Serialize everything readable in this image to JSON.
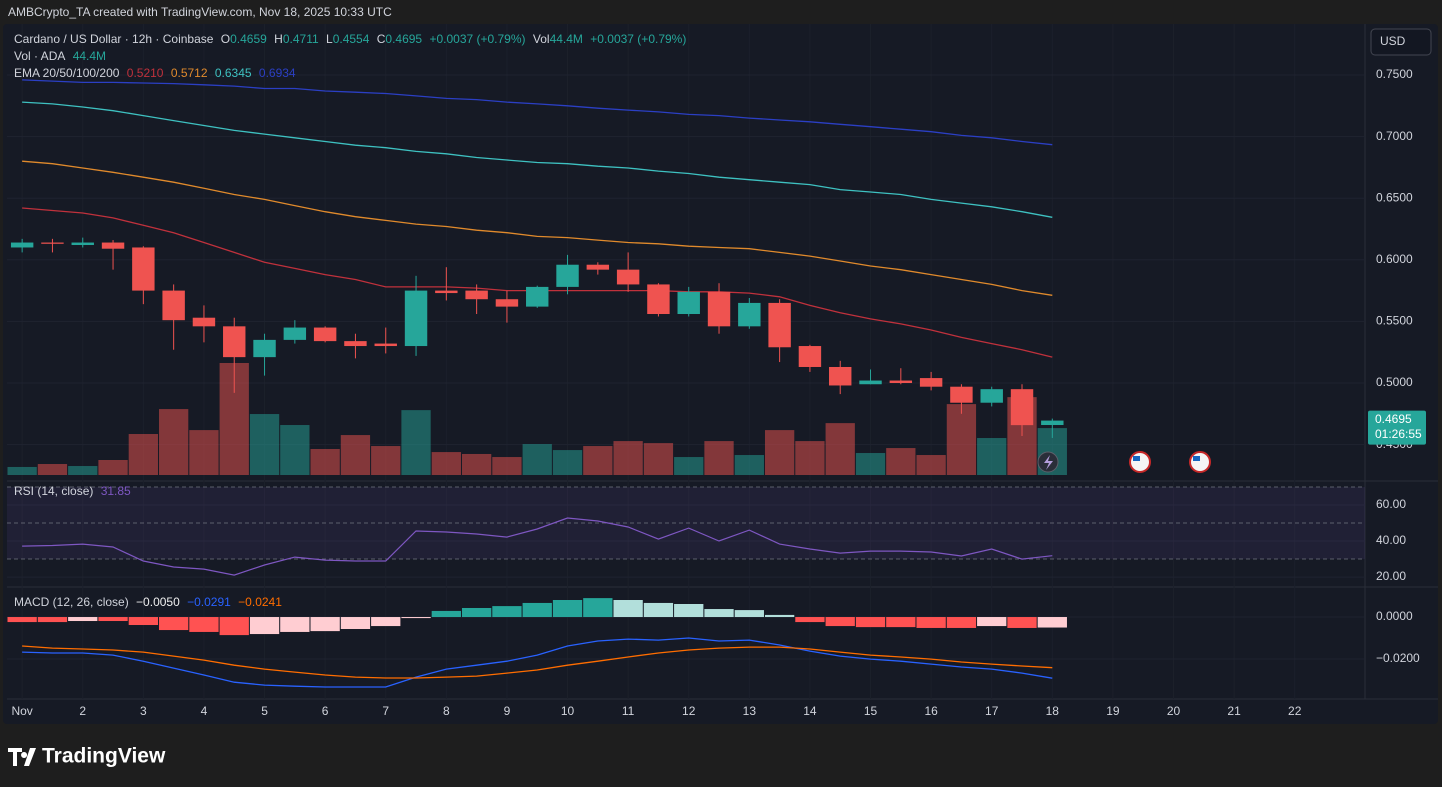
{
  "header": {
    "attribution": "AMBCrypto_TA created with TradingView.com, Nov 18, 2025 10:33 UTC"
  },
  "currency": "USD",
  "countdown": "01:26:55",
  "brand": "TradingView",
  "chart_data": [
    {
      "type": "candlestick",
      "title": "Cardano / US Dollar · 12h · Coinbase",
      "ohlc_labels": [
        "O",
        "H",
        "L",
        "C"
      ],
      "change": "+0.0037 (+0.79%)",
      "vol_short": "Vol",
      "up_color": "#26a69a",
      "down_color": "#ef5350",
      "x": [
        1,
        1.5,
        2,
        2.5,
        3,
        3.5,
        4,
        4.5,
        5,
        5.5,
        6,
        6.5,
        7,
        7.5,
        8,
        8.5,
        9,
        9.5,
        10,
        10.5,
        11,
        11.5,
        12,
        12.5,
        13,
        13.5,
        14,
        14.5,
        15,
        15.5,
        16,
        16.5,
        17,
        17.5,
        18
      ],
      "open": [
        0.61,
        0.614,
        0.612,
        0.614,
        0.61,
        0.575,
        0.553,
        0.546,
        0.521,
        0.535,
        0.545,
        0.534,
        0.532,
        0.53,
        0.575,
        0.575,
        0.568,
        0.562,
        0.578,
        0.596,
        0.592,
        0.58,
        0.556,
        0.574,
        0.546,
        0.565,
        0.53,
        0.513,
        0.499,
        0.502,
        0.504,
        0.497,
        0.484,
        0.495,
        0.4659
      ],
      "high": [
        0.617,
        0.617,
        0.618,
        0.616,
        0.611,
        0.58,
        0.563,
        0.553,
        0.54,
        0.551,
        0.546,
        0.54,
        0.545,
        0.587,
        0.594,
        0.58,
        0.575,
        0.579,
        0.604,
        0.598,
        0.606,
        0.581,
        0.578,
        0.581,
        0.569,
        0.568,
        0.531,
        0.518,
        0.511,
        0.512,
        0.509,
        0.499,
        0.497,
        0.499,
        0.4711
      ],
      "low": [
        0.606,
        0.606,
        0.61,
        0.592,
        0.564,
        0.527,
        0.533,
        0.492,
        0.506,
        0.532,
        0.533,
        0.52,
        0.524,
        0.522,
        0.567,
        0.556,
        0.549,
        0.561,
        0.572,
        0.588,
        0.574,
        0.554,
        0.554,
        0.54,
        0.544,
        0.517,
        0.509,
        0.491,
        0.499,
        0.499,
        0.494,
        0.475,
        0.481,
        0.457,
        0.4554
      ],
      "close": [
        0.614,
        0.613,
        0.614,
        0.609,
        0.575,
        0.551,
        0.546,
        0.521,
        0.535,
        0.545,
        0.534,
        0.53,
        0.53,
        0.575,
        0.573,
        0.568,
        0.562,
        0.578,
        0.596,
        0.592,
        0.58,
        0.556,
        0.574,
        0.546,
        0.565,
        0.529,
        0.513,
        0.498,
        0.502,
        0.5,
        0.497,
        0.484,
        0.495,
        0.4658,
        0.4695
      ],
      "xlim": [
        0.75,
        23.16
      ],
      "xticks": [
        {
          "value": 1,
          "label": "Nov"
        },
        2,
        3,
        4,
        5,
        6,
        7,
        8,
        9,
        10,
        11,
        12,
        13,
        14,
        15,
        16,
        17,
        18,
        19,
        20,
        21,
        22
      ],
      "ylim": [
        0.4229,
        0.793
      ],
      "yticks": [
        {
          "value": 0.45,
          "label": "0.4500"
        },
        {
          "value": 0.5,
          "label": "0.5000"
        },
        {
          "value": 0.55,
          "label": "0.5500"
        },
        {
          "value": 0.6,
          "label": "0.6000"
        },
        {
          "value": 0.65,
          "label": "0.6500"
        },
        {
          "value": 0.7,
          "label": "0.7000"
        },
        {
          "value": 0.75,
          "label": "0.7500"
        }
      ],
      "grid": true,
      "volume": {
        "title": "Vol · ADA",
        "value_label": "44.4M",
        "values": [
          7.6,
          10.4,
          8.5,
          14.2,
          38.8,
          62.4,
          42.5,
          106,
          57.7,
          47.3,
          24.6,
          37.8,
          27.4,
          61.4,
          21.7,
          19.9,
          17,
          29.3,
          23.6,
          27.4,
          32.1,
          30.2,
          17,
          32.1,
          18.9,
          42.5,
          32.1,
          49.1,
          20.8,
          25.5,
          18.9,
          67.1,
          35,
          73.7,
          44.4
        ]
      },
      "overlays": {
        "title": "EMA 20/50/100/200",
        "series": [
          {
            "color": "#c0313c",
            "values": [
              0.642,
              0.64,
              0.638,
              0.634,
              0.628,
              0.622,
              0.614,
              0.606,
              0.598,
              0.593,
              0.588,
              0.584,
              0.578,
              0.578,
              0.578,
              0.577,
              0.575,
              0.575,
              0.575,
              0.575,
              0.575,
              0.575,
              0.574,
              0.574,
              0.573,
              0.57,
              0.563,
              0.557,
              0.552,
              0.548,
              0.543,
              0.537,
              0.532,
              0.527,
              0.521
            ],
            "value_labels": [
              null,
              null,
              null,
              null,
              null,
              null,
              null,
              null,
              null,
              null,
              null,
              null,
              null,
              null,
              null,
              null,
              null,
              null,
              null,
              null,
              null,
              null,
              null,
              null,
              null,
              null,
              null,
              null,
              null,
              null,
              null,
              null,
              null,
              null,
              "0.5210"
            ]
          },
          {
            "color": "#e08a2c",
            "values": [
              0.68,
              0.678,
              0.6745,
              0.671,
              0.667,
              0.663,
              0.658,
              0.653,
              0.649,
              0.644,
              0.639,
              0.635,
              0.632,
              0.629,
              0.627,
              0.624,
              0.622,
              0.619,
              0.618,
              0.616,
              0.614,
              0.613,
              0.611,
              0.61,
              0.609,
              0.606,
              0.603,
              0.599,
              0.595,
              0.592,
              0.588,
              0.584,
              0.58,
              0.575,
              0.5712
            ],
            "value_labels": [
              null,
              null,
              null,
              null,
              null,
              null,
              null,
              null,
              null,
              null,
              null,
              null,
              null,
              null,
              null,
              null,
              null,
              null,
              null,
              null,
              null,
              null,
              null,
              null,
              null,
              null,
              null,
              null,
              null,
              null,
              null,
              null,
              null,
              null,
              "0.5712"
            ]
          },
          {
            "color": "#3ec1c1",
            "values": [
              0.728,
              0.7265,
              0.724,
              0.721,
              0.717,
              0.713,
              0.709,
              0.705,
              0.702,
              0.699,
              0.696,
              0.693,
              0.691,
              0.688,
              0.686,
              0.683,
              0.681,
              0.679,
              0.678,
              0.676,
              0.6745,
              0.672,
              0.67,
              0.667,
              0.665,
              0.663,
              0.661,
              0.657,
              0.655,
              0.653,
              0.649,
              0.646,
              0.643,
              0.639,
              0.6345
            ],
            "value_labels": [
              null,
              null,
              null,
              null,
              null,
              null,
              null,
              null,
              null,
              null,
              null,
              null,
              null,
              null,
              null,
              null,
              null,
              null,
              null,
              null,
              null,
              null,
              null,
              null,
              null,
              null,
              null,
              null,
              null,
              null,
              null,
              null,
              null,
              null,
              "0.6345"
            ]
          },
          {
            "color": "#2b3fc4",
            "values": [
              0.746,
              0.745,
              0.744,
              0.744,
              0.7435,
              0.743,
              0.742,
              0.741,
              0.739,
              0.739,
              0.737,
              0.736,
              0.735,
              0.733,
              0.731,
              0.73,
              0.728,
              0.7265,
              0.725,
              0.723,
              0.7215,
              0.72,
              0.718,
              0.717,
              0.715,
              0.7135,
              0.712,
              0.71,
              0.708,
              0.706,
              0.704,
              0.701,
              0.699,
              0.696,
              0.6934
            ],
            "value_labels": [
              null,
              null,
              null,
              null,
              null,
              null,
              null,
              null,
              null,
              null,
              null,
              null,
              null,
              null,
              null,
              null,
              null,
              null,
              null,
              null,
              null,
              null,
              null,
              null,
              null,
              null,
              null,
              null,
              null,
              null,
              null,
              null,
              null,
              null,
              "0.6934"
            ]
          }
        ]
      }
    },
    {
      "type": "line",
      "title": "RSI (14, close)",
      "color": "#7e57c2",
      "values": [
        37.2,
        37.5,
        38.3,
        36.7,
        28.9,
        25.6,
        24.4,
        21.1,
        26.7,
        31.1,
        29.4,
        28.9,
        28.9,
        45.6,
        45,
        43.9,
        42.2,
        46.7,
        52.8,
        51.1,
        47.8,
        41.1,
        47.2,
        40,
        46.1,
        38.3,
        35.6,
        33.3,
        34.4,
        34.4,
        33.9,
        31.7,
        35.6,
        30,
        31.85
      ],
      "bands": [
        30,
        50,
        70
      ],
      "ylim": [
        15.6,
        70
      ],
      "yticks": [
        {
          "value": 20,
          "label": "20.00"
        },
        {
          "value": 40,
          "label": "40.00"
        },
        {
          "value": 60,
          "label": "60.00"
        }
      ]
    },
    {
      "type": "macd",
      "title": "MACD (12, 26, close)",
      "histogram": {
        "colors": {
          "pos_up": "#26a69a",
          "pos_down": "#b2dfdb",
          "neg_down": "#ff5252",
          "neg_up": "#ffcdd2"
        },
        "values": [
          -0.0024,
          -0.0024,
          -0.0019,
          -0.0019,
          -0.0038,
          -0.0062,
          -0.0071,
          -0.0086,
          -0.0081,
          -0.0071,
          -0.0067,
          -0.0057,
          -0.0043,
          -0.0005,
          0.0029,
          0.0043,
          0.0052,
          0.0067,
          0.0081,
          0.009,
          0.0081,
          0.0067,
          0.0062,
          0.0038,
          0.0033,
          0.001,
          -0.0024,
          -0.0043,
          -0.0048,
          -0.0048,
          -0.0052,
          -0.0052,
          -0.0043,
          -0.0052,
          -0.005
        ],
        "value_labels": [
          null,
          null,
          null,
          null,
          null,
          null,
          null,
          null,
          null,
          null,
          null,
          null,
          null,
          null,
          null,
          null,
          null,
          null,
          null,
          null,
          null,
          null,
          null,
          null,
          null,
          null,
          null,
          null,
          null,
          null,
          null,
          null,
          null,
          null,
          "−0.0050"
        ]
      },
      "series": [
        {
          "color": "#2962ff",
          "values": [
            -0.0167,
            -0.0171,
            -0.0171,
            -0.0181,
            -0.021,
            -0.0243,
            -0.0276,
            -0.031,
            -0.0324,
            -0.0329,
            -0.0333,
            -0.0333,
            -0.0333,
            -0.0286,
            -0.0248,
            -0.0229,
            -0.021,
            -0.0181,
            -0.0138,
            -0.0114,
            -0.0105,
            -0.011,
            -0.01,
            -0.0114,
            -0.011,
            -0.0133,
            -0.0162,
            -0.0186,
            -0.02,
            -0.021,
            -0.0224,
            -0.0238,
            -0.0248,
            -0.0267,
            -0.0291
          ],
          "value_labels": [
            null,
            null,
            null,
            null,
            null,
            null,
            null,
            null,
            null,
            null,
            null,
            null,
            null,
            null,
            null,
            null,
            null,
            null,
            null,
            null,
            null,
            null,
            null,
            null,
            null,
            null,
            null,
            null,
            null,
            null,
            null,
            null,
            null,
            null,
            "−0.0291"
          ]
        },
        {
          "color": "#ff6d00",
          "values": [
            -0.0138,
            -0.0148,
            -0.0152,
            -0.0157,
            -0.0167,
            -0.0186,
            -0.0205,
            -0.0229,
            -0.0248,
            -0.0262,
            -0.0276,
            -0.0286,
            -0.029,
            -0.029,
            -0.0286,
            -0.0281,
            -0.0267,
            -0.0252,
            -0.0229,
            -0.021,
            -0.019,
            -0.0171,
            -0.0157,
            -0.0148,
            -0.0143,
            -0.0143,
            -0.0152,
            -0.0167,
            -0.0181,
            -0.019,
            -0.02,
            -0.0214,
            -0.0224,
            -0.0233,
            -0.0241
          ],
          "value_labels": [
            null,
            null,
            null,
            null,
            null,
            null,
            null,
            null,
            null,
            null,
            null,
            null,
            null,
            null,
            null,
            null,
            null,
            null,
            null,
            null,
            null,
            null,
            null,
            null,
            null,
            null,
            null,
            null,
            null,
            null,
            null,
            null,
            null,
            null,
            "−0.0241"
          ]
        }
      ],
      "ylim": [
        -0.0371,
        0.01286
      ],
      "yticks": [
        {
          "value": -0.02,
          "label": "−0.0200"
        },
        {
          "value": 0,
          "label": "0.0000"
        }
      ]
    }
  ]
}
